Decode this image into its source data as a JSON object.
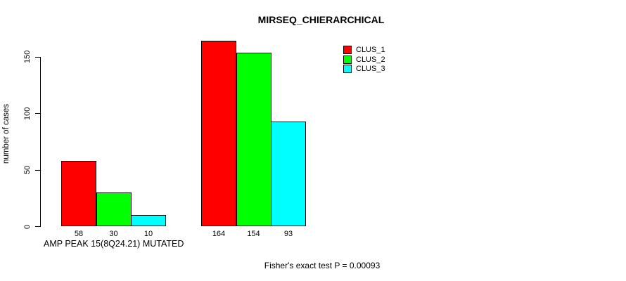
{
  "page": {
    "background": "#ffffff",
    "text_color": "#000000"
  },
  "chart_data": {
    "type": "bar",
    "title": "MIRSEQ_CHIERARCHICAL",
    "ylabel": "number of cases",
    "xlabel": "AMP PEAK 15(8Q24.21) MUTATED",
    "annotation": "Fisher's exact test P = 0.00093",
    "yticks": [
      0,
      50,
      100,
      150
    ],
    "ylim": [
      0,
      164
    ],
    "grid": false,
    "legend_position": "top-right",
    "bar_borders": "#000000",
    "value_labels_shown": true,
    "series": [
      {
        "name": "CLUS_1",
        "color": "#ff0000",
        "values": [
          58,
          164
        ]
      },
      {
        "name": "CLUS_2",
        "color": "#00ff00",
        "values": [
          30,
          154
        ]
      },
      {
        "name": "CLUS_3",
        "color": "#00ffff",
        "values": [
          10,
          93
        ]
      }
    ],
    "group_value_labels": [
      [
        "58",
        "30",
        "10"
      ],
      [
        "164",
        "154",
        "93"
      ]
    ]
  }
}
